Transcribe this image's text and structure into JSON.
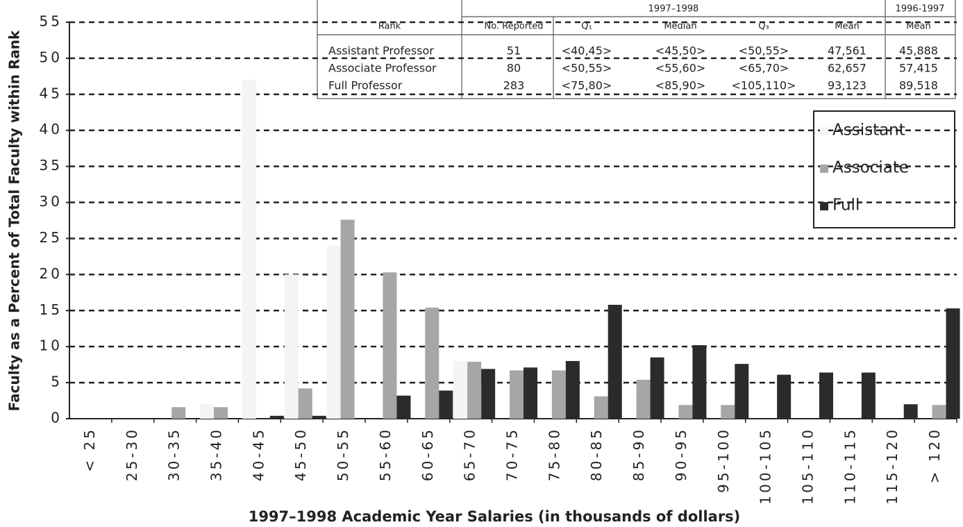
{
  "chart_data": {
    "type": "bar",
    "x_label": "1997–1998 Academic Year Salaries (in thousands of dollars)",
    "y_label": "Faculty as a Percent of Total Faculty within Rank",
    "categories": [
      "< 25",
      "25-30",
      "30-35",
      "35-40",
      "40-45",
      "45-50",
      "50-55",
      "55-60",
      "60-65",
      "65-70",
      "70-75",
      "75-80",
      "80-85",
      "85-90",
      "90-95",
      "95-100",
      "100-105",
      "105-110",
      "110-115",
      "115-120",
      "> 120"
    ],
    "series": [
      {
        "name": "Assistant",
        "color": "#f4f4f4",
        "values": [
          0,
          0,
          0,
          2,
          47,
          20,
          24,
          0,
          0,
          8,
          0,
          0,
          0,
          0,
          0,
          0,
          0,
          0,
          0,
          0,
          0
        ]
      },
      {
        "name": "Associate",
        "color": "#a6a6a6",
        "values": [
          0,
          0,
          1.6,
          1.6,
          0,
          4.2,
          27.6,
          20.3,
          15.4,
          7.9,
          6.7,
          6.7,
          3.1,
          5.4,
          1.9,
          1.9,
          0,
          0,
          0,
          0,
          1.9
        ]
      },
      {
        "name": "Full",
        "color": "#2b2b2b",
        "values": [
          0,
          0,
          0,
          0,
          0.4,
          0.4,
          0,
          3.2,
          3.9,
          6.9,
          7.1,
          8.0,
          15.8,
          8.5,
          10.2,
          7.6,
          6.1,
          6.4,
          6.4,
          2.0,
          15.3
        ]
      }
    ],
    "ylim": [
      0,
      55
    ],
    "yticks": [
      0,
      5,
      10,
      15,
      20,
      25,
      30,
      35,
      40,
      45,
      50,
      55
    ],
    "grid": true,
    "legend": "right"
  },
  "table": {
    "group_current": "1997–1998",
    "group_previous": "1996-1997",
    "columns": [
      "Rank",
      "No. Reported",
      "Q₁",
      "Median",
      "Q₃",
      "Mean",
      "Mean"
    ],
    "rows": [
      [
        "Assistant Professor",
        "51",
        "<40,45>",
        "<45,50>",
        "<50,55>",
        "47,561",
        "45,888"
      ],
      [
        "Associate Professor",
        "80",
        "<50,55>",
        "<55,60>",
        "<65,70>",
        "62,657",
        "57,415"
      ],
      [
        "Full Professor",
        "283",
        "<75,80>",
        "<85,90>",
        "<105,110>",
        "93,123",
        "89,518"
      ]
    ]
  }
}
